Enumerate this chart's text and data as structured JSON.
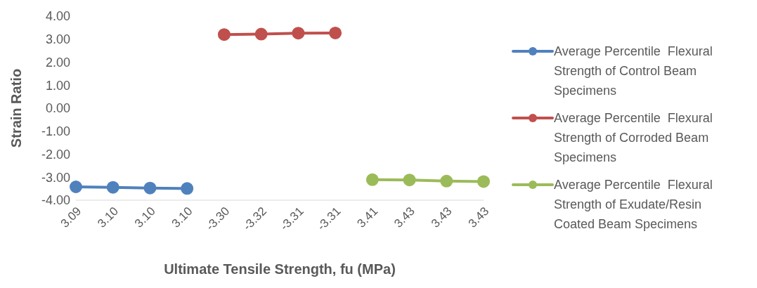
{
  "chart_data": {
    "type": "line",
    "xlabel": "Ultimate Tensile Strength, fu (MPa)",
    "ylabel": "Strain Ratio",
    "categories": [
      "3.09",
      "3.10",
      "3.10",
      "3.10",
      "-3.30",
      "-3.32",
      "-3.31",
      "-3.31",
      "3.41",
      "3.43",
      "3.43",
      "3.43"
    ],
    "series": [
      {
        "name": "Average Percentile  Flexural Strength of Control Beam Specimens",
        "color": "#4f81bd",
        "values": [
          -3.42,
          -3.44,
          -3.47,
          -3.49,
          null,
          null,
          null,
          null,
          null,
          null,
          null,
          null
        ]
      },
      {
        "name": "Average Percentile  Flexural Strength of Corroded Beam Specimens",
        "color": "#c0504d",
        "values": [
          null,
          null,
          null,
          null,
          3.2,
          3.22,
          3.26,
          3.27,
          null,
          null,
          null,
          null
        ]
      },
      {
        "name": "Average Percentile  Flexural Strength of Exudate/Resin Coated Beam Specimens",
        "color": "#9bbb59",
        "values": [
          null,
          null,
          null,
          null,
          null,
          null,
          null,
          null,
          -3.11,
          -3.12,
          -3.17,
          -3.19
        ]
      }
    ],
    "ylim": [
      -4,
      4
    ],
    "yticks": [
      {
        "value": -4,
        "label": "-4.00"
      },
      {
        "value": -3,
        "label": "-3.00"
      },
      {
        "value": -2,
        "label": "-2.00"
      },
      {
        "value": -1,
        "label": "-1.00"
      },
      {
        "value": 0,
        "label": "0.00"
      },
      {
        "value": 1,
        "label": "1.00"
      },
      {
        "value": 2,
        "label": "2.00"
      },
      {
        "value": 3,
        "label": "3.00"
      },
      {
        "value": 4,
        "label": "4.00"
      }
    ],
    "grid": false,
    "legend": "right",
    "marker": "circle",
    "line_style": "solid"
  }
}
